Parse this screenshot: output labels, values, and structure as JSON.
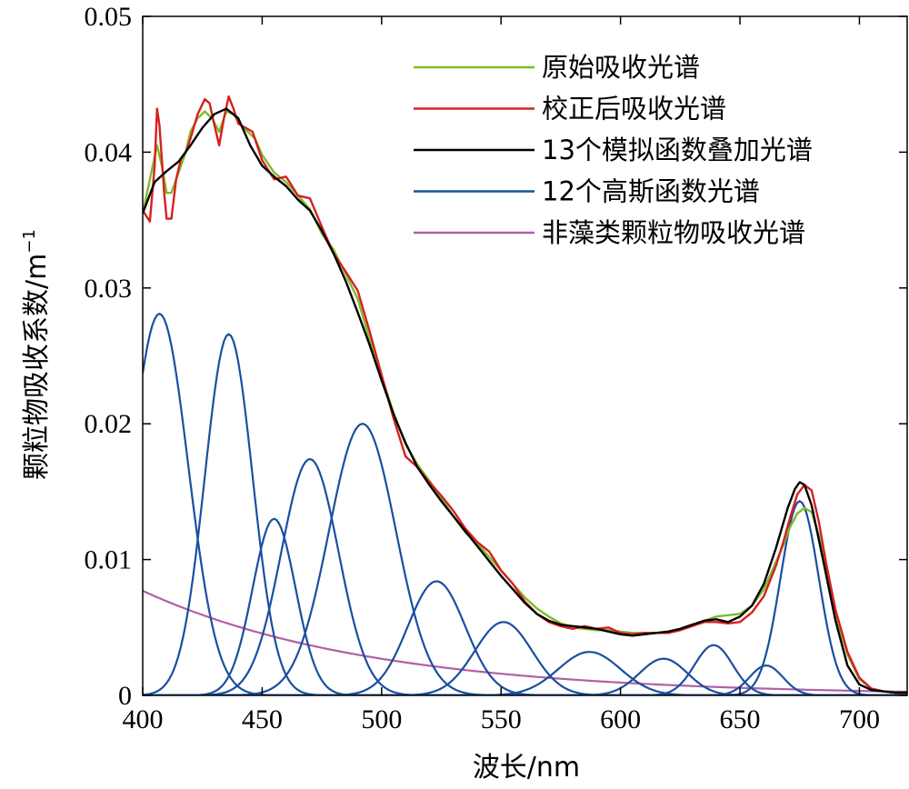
{
  "chart_data": {
    "type": "line",
    "xlabel": "波长/nm",
    "ylabel": "颗粒物吸收系数/m",
    "ylabel_sup": "−1",
    "xlim": [
      400,
      720
    ],
    "ylim": [
      0,
      0.05
    ],
    "xticks": [
      400,
      450,
      500,
      550,
      600,
      650,
      700
    ],
    "xtick_labels": [
      "400",
      "450",
      "500",
      "550",
      "600",
      "650",
      "700"
    ],
    "yticks": [
      0,
      0.01,
      0.02,
      0.03,
      0.04,
      0.05
    ],
    "ytick_labels": [
      "0",
      "0.01",
      "0.02",
      "0.03",
      "0.04",
      "0.05"
    ],
    "grid": false,
    "legend_position": "top-right",
    "colors": {
      "original": "#7dbb2a",
      "corrected": "#d62020",
      "fit": "#000000",
      "gaussian": "#1a4fa0",
      "nap": "#b060a8"
    },
    "series": [
      {
        "name": "原始吸收光谱",
        "color": "#7dbb2a",
        "x": [
          400,
          403,
          406,
          408,
          410,
          412,
          415,
          418,
          420,
          423,
          426,
          429,
          432,
          435,
          438,
          441,
          444,
          447,
          450,
          455,
          460,
          465,
          470,
          475,
          480,
          485,
          490,
          495,
          500,
          505,
          510,
          515,
          520,
          525,
          530,
          535,
          540,
          545,
          550,
          555,
          560,
          565,
          570,
          575,
          580,
          585,
          590,
          595,
          600,
          605,
          610,
          615,
          620,
          625,
          630,
          635,
          640,
          645,
          650,
          655,
          660,
          665,
          668,
          671,
          674,
          677,
          680,
          683,
          686,
          690,
          695,
          700,
          705,
          710,
          715,
          720
        ],
        "y": [
          0.0355,
          0.038,
          0.0405,
          0.039,
          0.037,
          0.037,
          0.0385,
          0.04,
          0.0415,
          0.0425,
          0.043,
          0.0425,
          0.0415,
          0.043,
          0.0428,
          0.042,
          0.0415,
          0.041,
          0.0398,
          0.0385,
          0.0378,
          0.0368,
          0.0358,
          0.034,
          0.0328,
          0.031,
          0.0292,
          0.0262,
          0.0235,
          0.0208,
          0.0185,
          0.017,
          0.0158,
          0.0145,
          0.0132,
          0.012,
          0.0112,
          0.0102,
          0.0092,
          0.0082,
          0.0072,
          0.0064,
          0.0058,
          0.0053,
          0.005,
          0.0049,
          0.0048,
          0.0048,
          0.0047,
          0.0046,
          0.0046,
          0.0046,
          0.0047,
          0.0049,
          0.0052,
          0.0055,
          0.0058,
          0.0059,
          0.006,
          0.0066,
          0.0078,
          0.0098,
          0.011,
          0.0124,
          0.0134,
          0.0138,
          0.0135,
          0.0118,
          0.0092,
          0.006,
          0.003,
          0.0012,
          0.0005,
          0.0003,
          0.0002,
          0.0002
        ]
      },
      {
        "name": "校正后吸收光谱",
        "color": "#d62020",
        "x": [
          400,
          403,
          405,
          406,
          407,
          408,
          409,
          410,
          412,
          414,
          416,
          418,
          420,
          423,
          426,
          428,
          430,
          432,
          434,
          436,
          438,
          440,
          443,
          446,
          450,
          455,
          460,
          465,
          470,
          475,
          480,
          485,
          490,
          495,
          500,
          505,
          510,
          515,
          520,
          525,
          530,
          535,
          540,
          545,
          550,
          555,
          560,
          565,
          570,
          575,
          580,
          585,
          590,
          595,
          600,
          605,
          610,
          615,
          620,
          625,
          630,
          635,
          640,
          645,
          650,
          655,
          660,
          665,
          668,
          671,
          674,
          677,
          680,
          683,
          686,
          690,
          695,
          700,
          705,
          710,
          715,
          720
        ],
        "y": [
          0.0357,
          0.0349,
          0.039,
          0.0432,
          0.042,
          0.0395,
          0.037,
          0.0351,
          0.0351,
          0.038,
          0.0395,
          0.04,
          0.041,
          0.0428,
          0.0439,
          0.0436,
          0.042,
          0.0405,
          0.0425,
          0.0441,
          0.0432,
          0.0421,
          0.0418,
          0.0415,
          0.0394,
          0.038,
          0.0382,
          0.0368,
          0.0366,
          0.0345,
          0.0325,
          0.0312,
          0.0298,
          0.0268,
          0.0236,
          0.0204,
          0.0176,
          0.0168,
          0.0157,
          0.0147,
          0.0136,
          0.0123,
          0.0113,
          0.0106,
          0.0092,
          0.0082,
          0.0069,
          0.006,
          0.0054,
          0.0051,
          0.0049,
          0.0051,
          0.0049,
          0.005,
          0.0046,
          0.0045,
          0.0046,
          0.0046,
          0.0046,
          0.0048,
          0.0051,
          0.0054,
          0.0054,
          0.0053,
          0.0054,
          0.0061,
          0.0073,
          0.0095,
          0.0112,
          0.0131,
          0.0148,
          0.0155,
          0.0151,
          0.0128,
          0.0098,
          0.0063,
          0.0032,
          0.0013,
          0.0005,
          0.0003,
          0.0002,
          0.0002
        ]
      },
      {
        "name": "13个模拟函数叠加光谱",
        "color": "#000000",
        "x": [
          400,
          405,
          410,
          415,
          420,
          425,
          430,
          435,
          440,
          445,
          450,
          455,
          460,
          465,
          470,
          475,
          480,
          485,
          490,
          495,
          500,
          505,
          510,
          515,
          520,
          525,
          530,
          535,
          540,
          545,
          550,
          555,
          560,
          565,
          570,
          575,
          580,
          585,
          590,
          595,
          600,
          605,
          610,
          615,
          620,
          625,
          630,
          635,
          640,
          645,
          650,
          655,
          660,
          665,
          670,
          673,
          675,
          677,
          680,
          685,
          690,
          695,
          700,
          705,
          710,
          715,
          720
        ],
        "y": [
          0.0355,
          0.0378,
          0.0386,
          0.0393,
          0.0405,
          0.0418,
          0.0428,
          0.0432,
          0.0425,
          0.0405,
          0.039,
          0.0382,
          0.0375,
          0.0365,
          0.0357,
          0.0342,
          0.0325,
          0.0305,
          0.0282,
          0.0258,
          0.0232,
          0.0207,
          0.0186,
          0.0168,
          0.0155,
          0.0143,
          0.0132,
          0.0121,
          0.011,
          0.0099,
          0.0088,
          0.0078,
          0.0068,
          0.006,
          0.0055,
          0.0052,
          0.0051,
          0.005,
          0.0049,
          0.0047,
          0.0045,
          0.0044,
          0.0045,
          0.0046,
          0.0047,
          0.0049,
          0.0052,
          0.0055,
          0.0056,
          0.0054,
          0.0058,
          0.0066,
          0.0082,
          0.0108,
          0.0138,
          0.0152,
          0.0157,
          0.0155,
          0.014,
          0.0098,
          0.0055,
          0.0022,
          0.0008,
          0.0004,
          0.0003,
          0.0002,
          0.0002
        ]
      },
      {
        "name": "12个高斯函数光谱",
        "color": "#1a4fa0",
        "type": "gaussian",
        "components": [
          {
            "center": 407,
            "amplitude": 0.0281,
            "sigma": 12
          },
          {
            "center": 436,
            "amplitude": 0.0266,
            "sigma": 10
          },
          {
            "center": 455,
            "amplitude": 0.013,
            "sigma": 9
          },
          {
            "center": 470,
            "amplitude": 0.0174,
            "sigma": 12
          },
          {
            "center": 492,
            "amplitude": 0.02,
            "sigma": 14
          },
          {
            "center": 523,
            "amplitude": 0.0084,
            "sigma": 12
          },
          {
            "center": 551,
            "amplitude": 0.0054,
            "sigma": 12
          },
          {
            "center": 587,
            "amplitude": 0.0032,
            "sigma": 13
          },
          {
            "center": 618,
            "amplitude": 0.0027,
            "sigma": 10
          },
          {
            "center": 639,
            "amplitude": 0.0037,
            "sigma": 8
          },
          {
            "center": 661,
            "amplitude": 0.0022,
            "sigma": 7
          },
          {
            "center": 675,
            "amplitude": 0.0143,
            "sigma": 8
          }
        ]
      },
      {
        "name": "非藻类颗粒物吸收光谱",
        "color": "#b060a8",
        "type": "exponential",
        "a400": 0.0077,
        "slope": 0.0105
      }
    ]
  }
}
